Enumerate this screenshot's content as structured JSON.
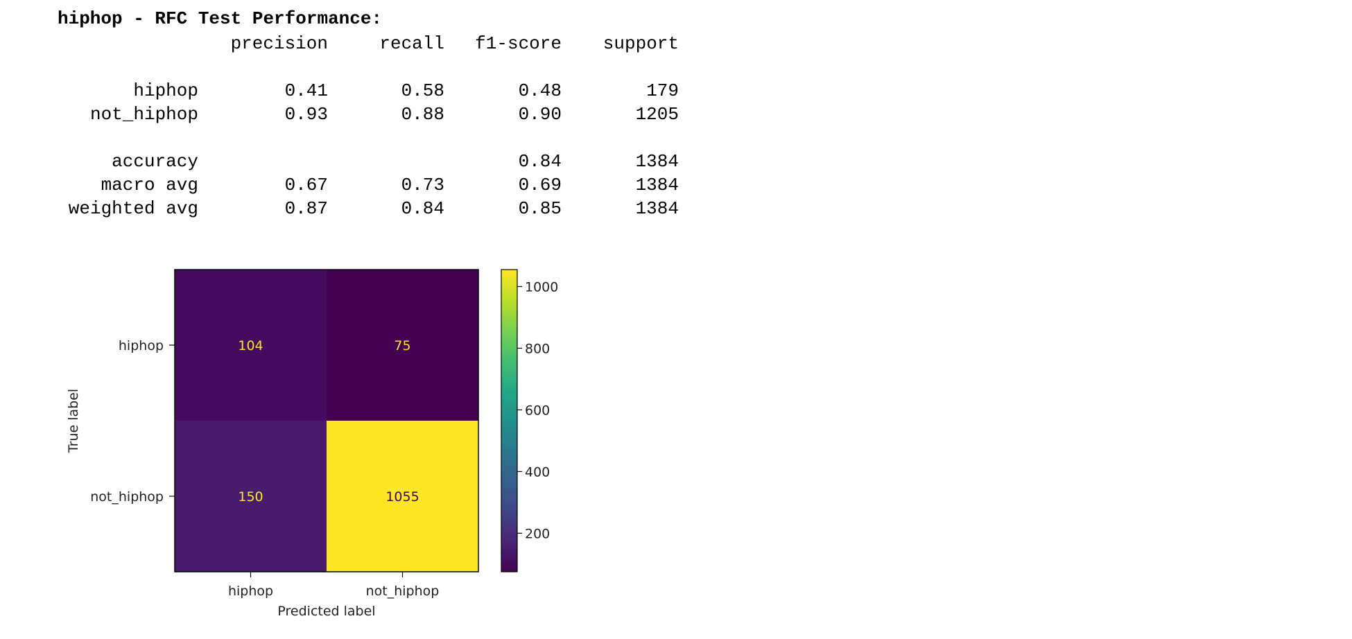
{
  "report": {
    "title": "hiphop - RFC Test Performance:",
    "headers": {
      "precision": "precision",
      "recall": "recall",
      "f1": "f1-score",
      "support": "support"
    },
    "rows": [
      {
        "label": "hiphop",
        "precision": "0.41",
        "recall": "0.58",
        "f1": "0.48",
        "support": "179"
      },
      {
        "label": "not_hiphop",
        "precision": "0.93",
        "recall": "0.88",
        "f1": "0.90",
        "support": "1205"
      },
      {
        "label": "accuracy",
        "precision": "",
        "recall": "",
        "f1": "0.84",
        "support": "1384"
      },
      {
        "label": "macro avg",
        "precision": "0.67",
        "recall": "0.73",
        "f1": "0.69",
        "support": "1384"
      },
      {
        "label": "weighted avg",
        "precision": "0.87",
        "recall": "0.84",
        "f1": "0.85",
        "support": "1384"
      }
    ]
  },
  "chart_data": {
    "type": "heatmap",
    "title": "",
    "xlabel": "Predicted label",
    "ylabel": "True label",
    "x_categories": [
      "hiphop",
      "not_hiphop"
    ],
    "y_categories": [
      "hiphop",
      "not_hiphop"
    ],
    "values": [
      [
        104,
        75
      ],
      [
        150,
        1055
      ]
    ],
    "colormap": "viridis",
    "colorbar": {
      "range": [
        75,
        1055
      ],
      "ticks": [
        200,
        400,
        600,
        800,
        1000
      ]
    },
    "colors": {
      "dark_text": "#fde725",
      "light_text": "#440154"
    }
  }
}
